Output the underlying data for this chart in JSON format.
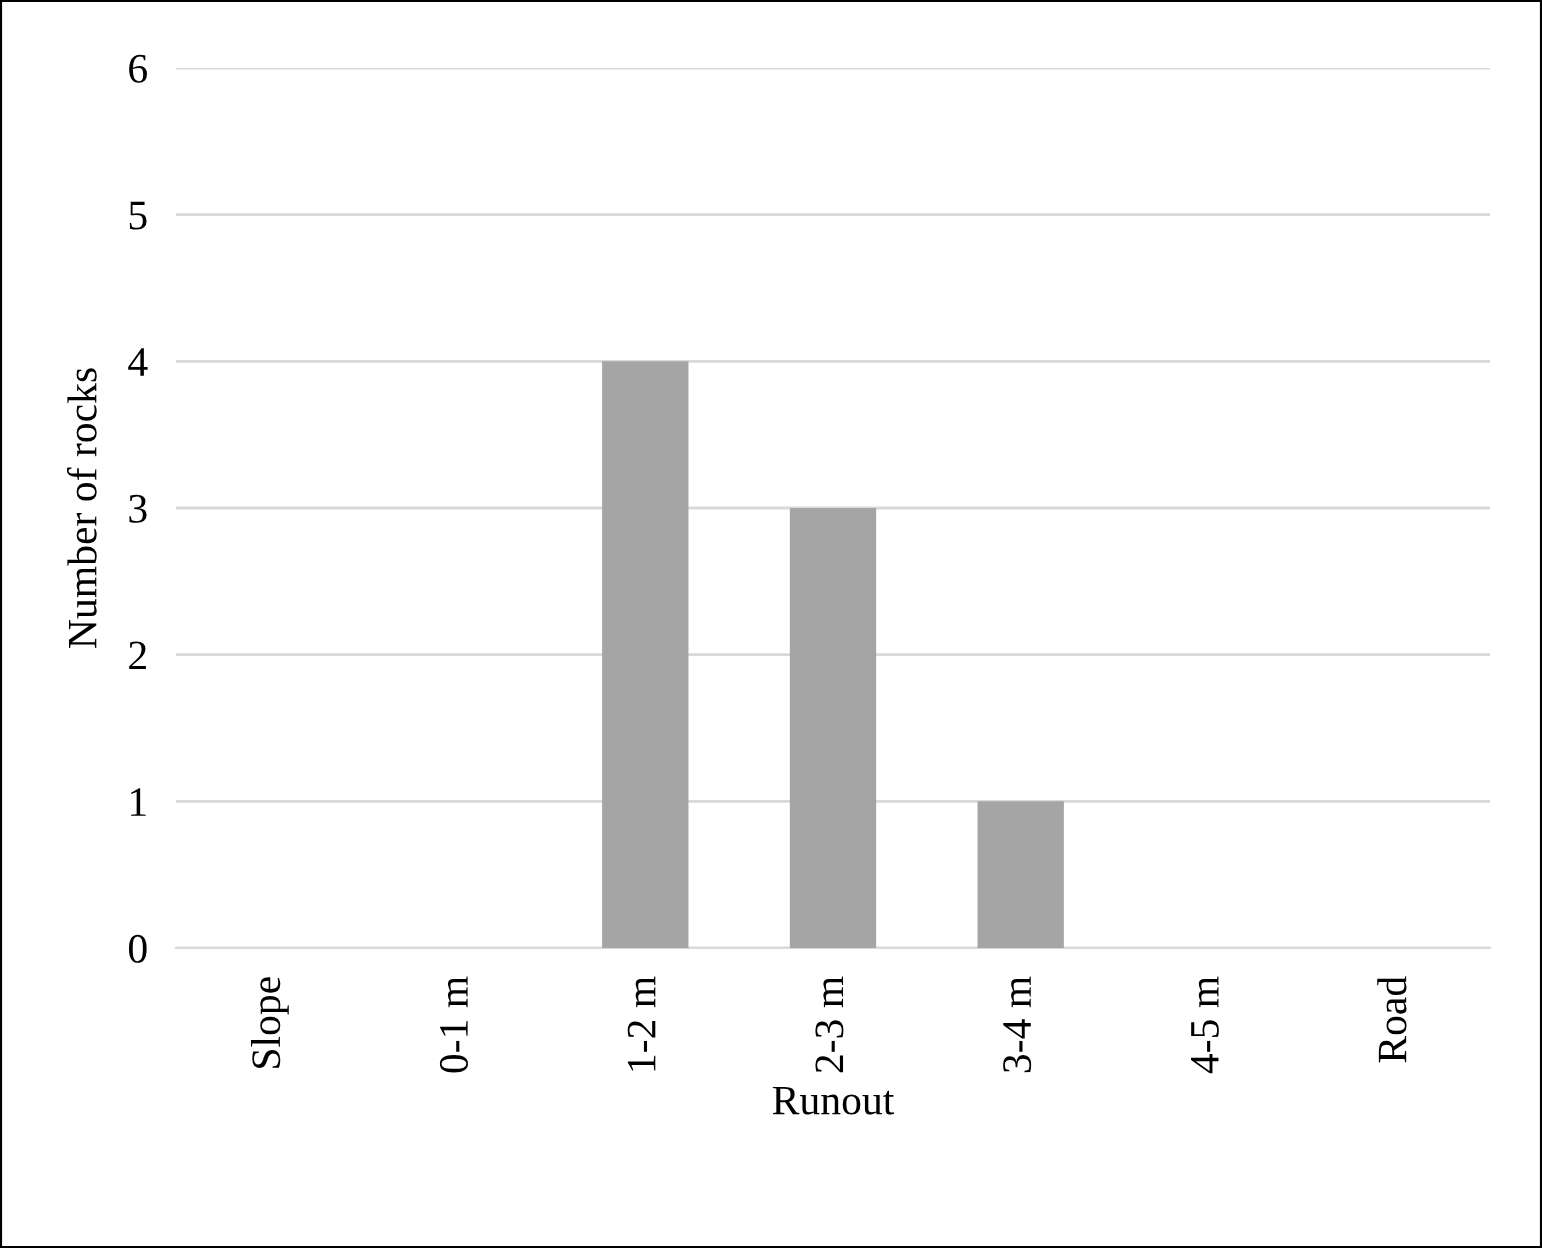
{
  "chart_data": {
    "type": "bar",
    "xlabel": "Runout",
    "ylabel": "Number of rocks",
    "categories": [
      "Slope",
      "0-1 m",
      "1-2 m",
      "2-3 m",
      "3-4 m",
      "4-5 m",
      "Road"
    ],
    "values": [
      0,
      0,
      4,
      3,
      1,
      0,
      0
    ],
    "color": "#a5a5a5",
    "ylim": [
      0,
      6
    ],
    "yticks": [
      0,
      1,
      2,
      3,
      4,
      5,
      6
    ],
    "grid": "y",
    "legend": false
  }
}
